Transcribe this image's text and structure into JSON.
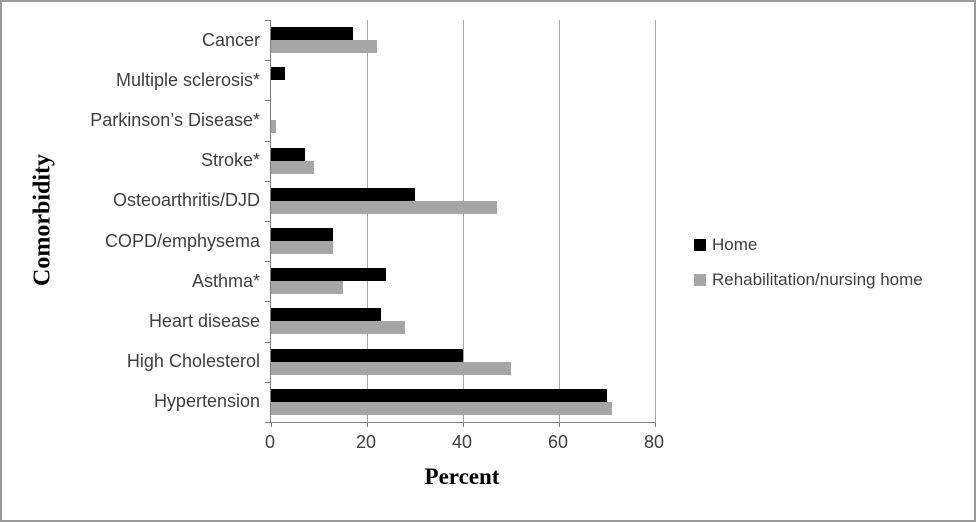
{
  "chart_data": {
    "type": "bar",
    "orientation": "horizontal",
    "title": "",
    "xlabel": "Percent",
    "ylabel": "Comorbidity",
    "xlim": [
      0,
      80
    ],
    "xticks": [
      0,
      20,
      40,
      60,
      80
    ],
    "grid": true,
    "legend_position": "right",
    "categories": [
      "Cancer",
      "Multiple sclerosis*",
      "Parkinson’s Disease*",
      "Stroke*",
      "Osteoarthritis/DJD",
      "COPD/emphysema",
      "Asthma*",
      "Heart disease",
      "High Cholesterol",
      "Hypertension"
    ],
    "series": [
      {
        "name": "Home",
        "color": "#000000",
        "values": [
          17,
          3,
          0,
          7,
          30,
          13,
          24,
          23,
          40,
          70
        ]
      },
      {
        "name": "Rehabilitation/nursing home",
        "color": "#a6a6a6",
        "values": [
          22,
          0,
          1,
          9,
          47,
          13,
          15,
          28,
          50,
          71
        ]
      }
    ]
  },
  "colors": {
    "gridline": "#a6a6a6",
    "axis": "#7f7f7f",
    "frame_border": "#9a9a9a",
    "label_text": "#3f3f3f"
  }
}
